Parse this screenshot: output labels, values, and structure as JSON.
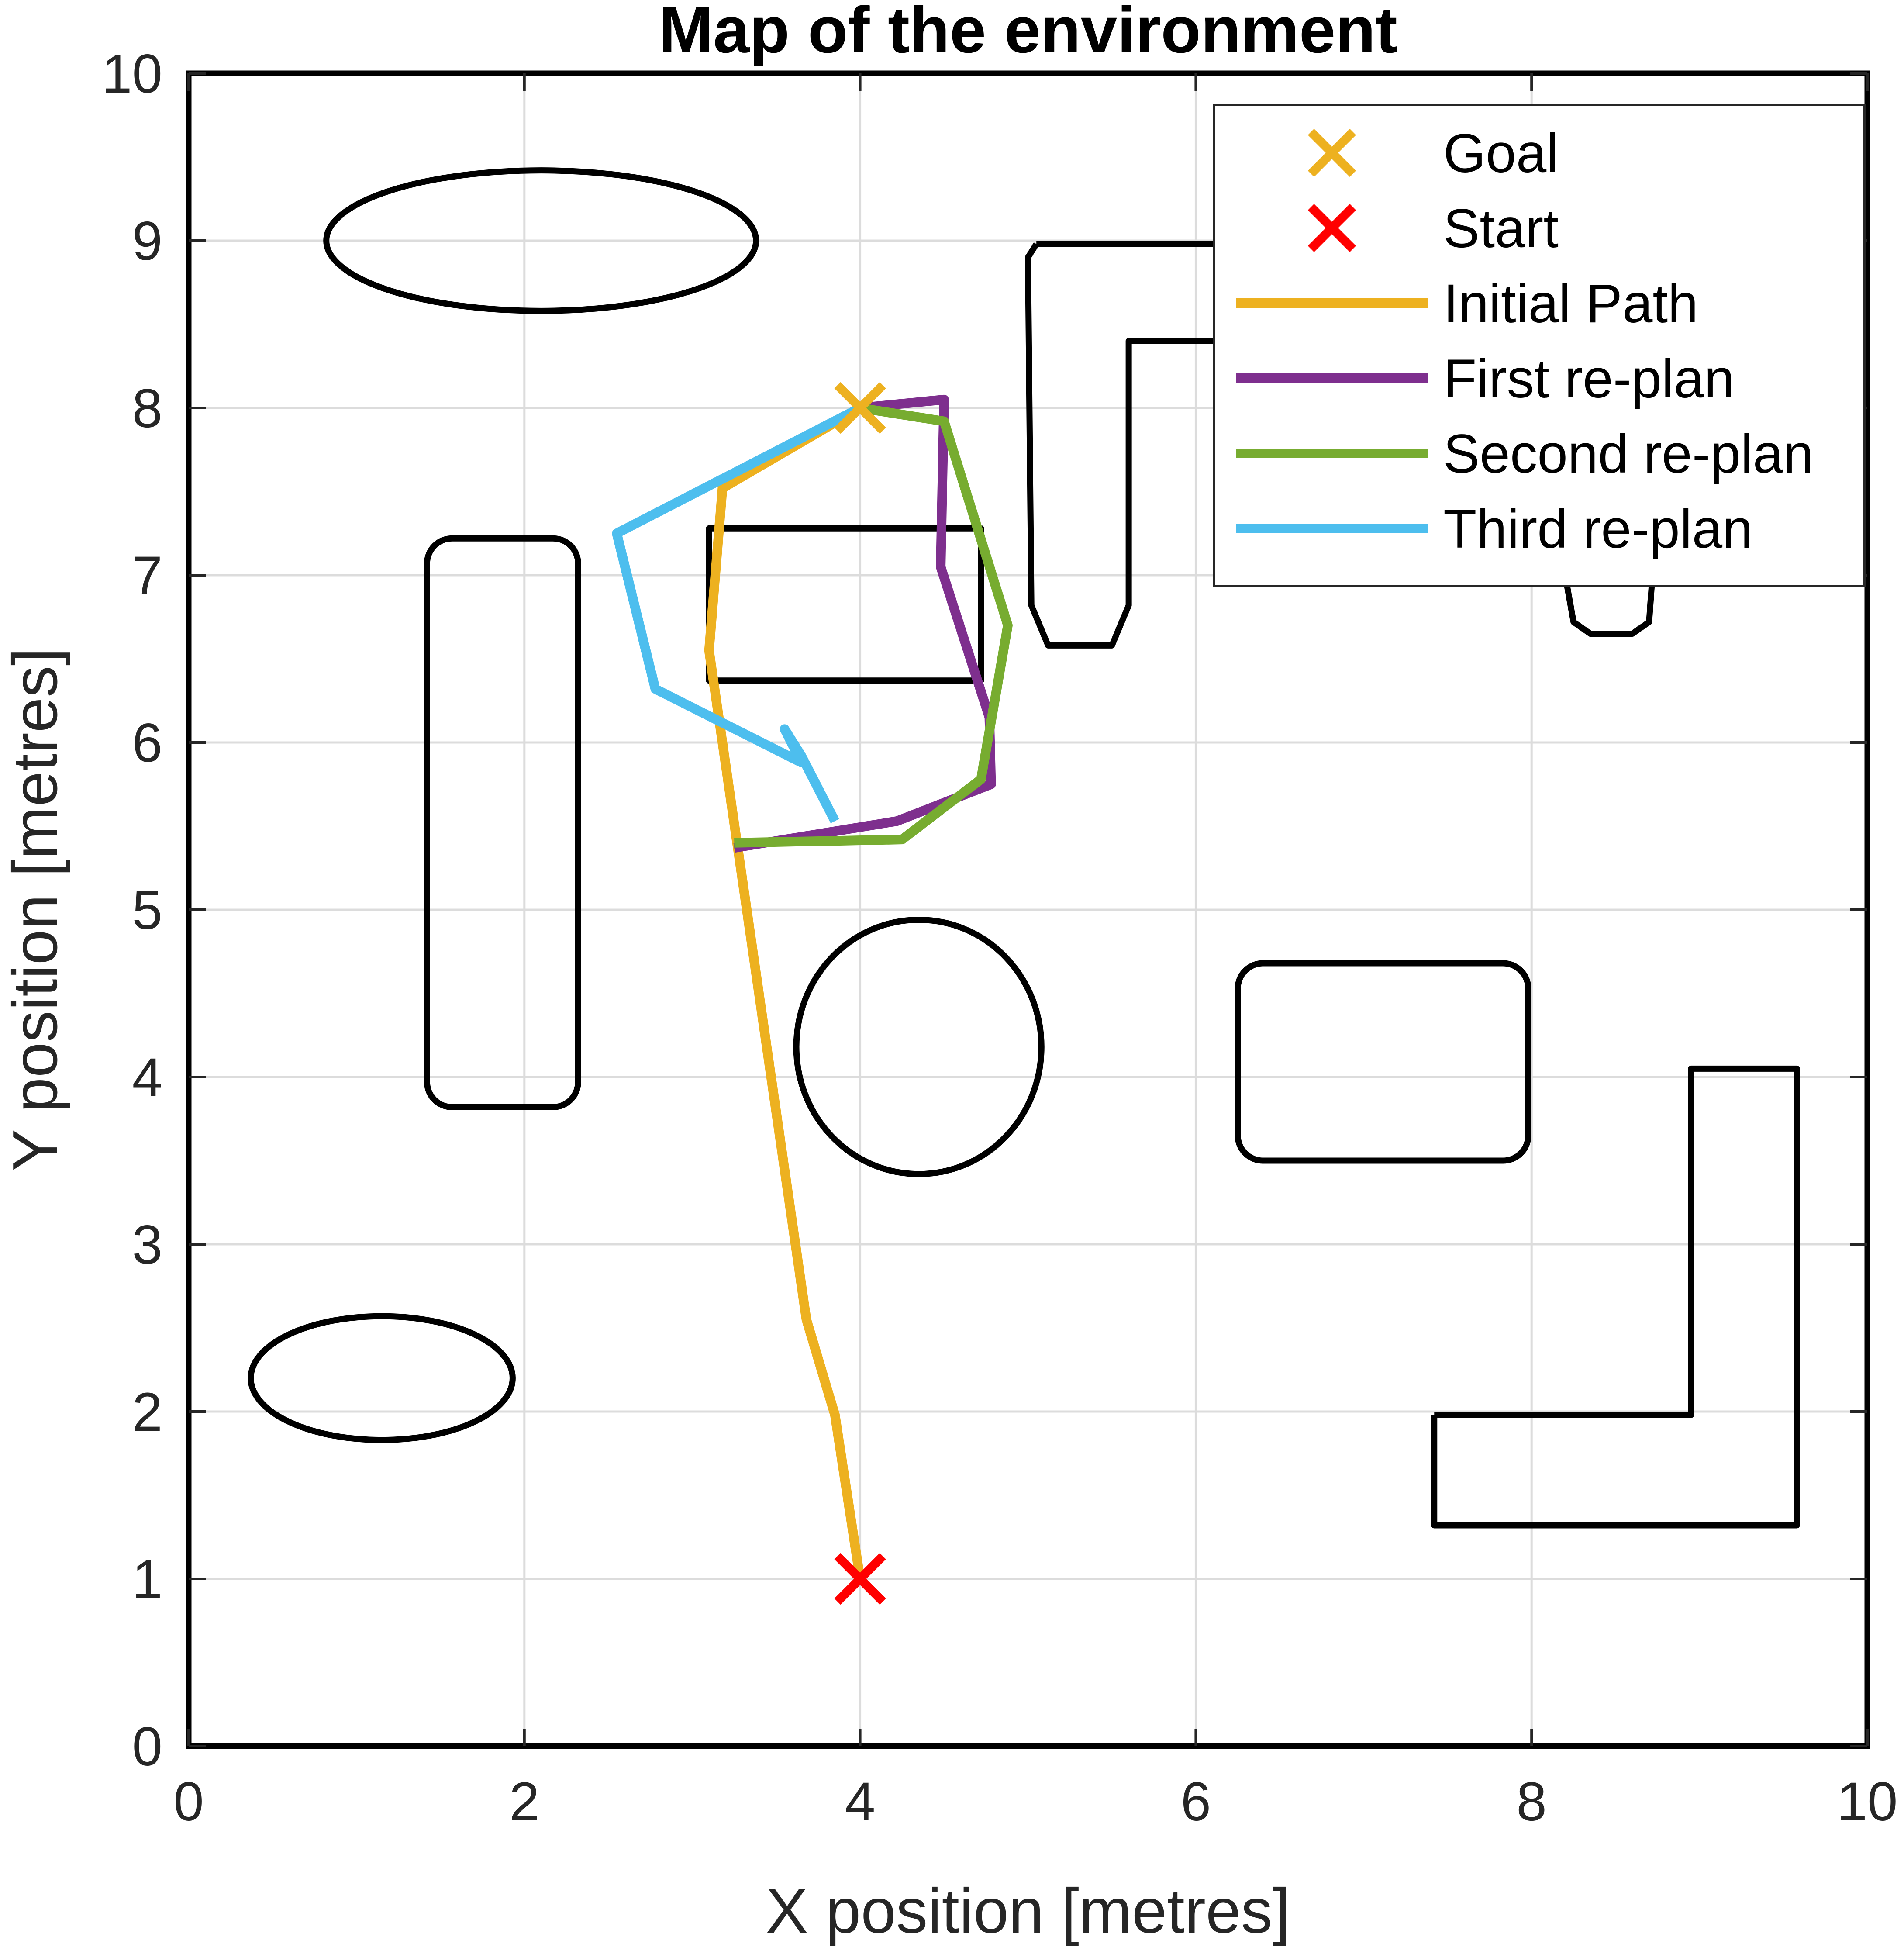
{
  "chart_data": {
    "type": "line",
    "title": "Map of the environment",
    "xlabel": "X position [metres]",
    "ylabel": "Y position [metres]",
    "xlim": [
      0,
      10
    ],
    "ylim": [
      0,
      10
    ],
    "xticks": [
      "0",
      "2",
      "4",
      "6",
      "8",
      "10"
    ],
    "yticks": [
      "0",
      "1",
      "2",
      "3",
      "4",
      "5",
      "6",
      "7",
      "8",
      "9",
      "10"
    ],
    "grid": true,
    "legend_position": "top-right",
    "markers": [
      {
        "name": "Goal",
        "x": 4.0,
        "y": 8.0,
        "color": "#EDB120",
        "symbol": "x"
      },
      {
        "name": "Start",
        "x": 4.0,
        "y": 1.0,
        "color": "#FF0000",
        "symbol": "x"
      }
    ],
    "series": [
      {
        "name": "Initial Path",
        "color": "#EDB120",
        "points": [
          [
            4.0,
            1.0
          ],
          [
            3.85,
            1.98
          ],
          [
            3.68,
            2.55
          ],
          [
            3.1,
            6.55
          ],
          [
            3.18,
            7.52
          ],
          [
            4.0,
            8.0
          ]
        ]
      },
      {
        "name": "First re-plan",
        "color": "#7E2F8E",
        "points": [
          [
            3.25,
            5.37
          ],
          [
            4.22,
            5.53
          ],
          [
            4.78,
            5.75
          ],
          [
            4.77,
            6.15
          ],
          [
            4.48,
            7.05
          ],
          [
            4.5,
            8.05
          ],
          [
            4.0,
            8.0
          ]
        ]
      },
      {
        "name": "Second re-plan",
        "color": "#77AC30",
        "points": [
          [
            3.25,
            5.4
          ],
          [
            4.25,
            5.42
          ],
          [
            4.72,
            5.78
          ],
          [
            4.88,
            6.7
          ],
          [
            4.5,
            7.92
          ],
          [
            4.0,
            8.0
          ]
        ]
      },
      {
        "name": "Third re-plan",
        "color": "#4DBEEE",
        "points": [
          [
            3.85,
            5.53
          ],
          [
            3.65,
            5.92
          ],
          [
            3.55,
            6.08
          ],
          [
            3.65,
            5.88
          ],
          [
            2.78,
            6.32
          ],
          [
            2.55,
            7.25
          ],
          [
            4.0,
            8.0
          ]
        ]
      }
    ],
    "obstacles": [
      {
        "shape": "ellipse",
        "cx": 2.1,
        "cy": 9.0,
        "rx": 1.28,
        "ry": 0.42
      },
      {
        "shape": "ellipse",
        "cx": 1.15,
        "cy": 2.2,
        "rx": 0.78,
        "ry": 0.37
      },
      {
        "shape": "ellipse",
        "cx": 4.35,
        "cy": 4.18,
        "rx": 0.73,
        "ry": 0.76
      },
      {
        "shape": "rect",
        "x": [
          1.42,
          2.32
        ],
        "y": [
          3.82,
          7.22
        ],
        "r": 0.15
      },
      {
        "shape": "rect",
        "x": [
          6.25,
          7.98
        ],
        "y": [
          3.5,
          4.68
        ],
        "r": 0.15
      },
      {
        "shape": "rect",
        "x": [
          3.1,
          4.72
        ],
        "y": [
          6.37,
          7.28
        ],
        "r": 0.0
      },
      {
        "shape": "polyline",
        "points": [
          [
            5.05,
            8.98
          ],
          [
            6.3,
            8.98
          ],
          [
            6.3,
            8.4
          ],
          [
            5.6,
            8.4
          ],
          [
            5.6,
            6.82
          ],
          [
            5.5,
            6.58
          ],
          [
            5.12,
            6.58
          ],
          [
            5.02,
            6.82
          ],
          [
            5.0,
            8.9
          ],
          [
            5.05,
            8.98
          ]
        ]
      },
      {
        "shape": "polyline",
        "points": [
          [
            8.2,
            7.0
          ],
          [
            8.25,
            6.72
          ],
          [
            8.35,
            6.65
          ],
          [
            8.6,
            6.65
          ],
          [
            8.7,
            6.72
          ],
          [
            8.72,
            7.0
          ]
        ]
      },
      {
        "shape": "polyline",
        "points": [
          [
            7.42,
            1.98
          ],
          [
            8.95,
            1.98
          ],
          [
            8.95,
            4.05
          ],
          [
            9.58,
            4.05
          ],
          [
            9.58,
            1.32
          ],
          [
            7.42,
            1.32
          ],
          [
            7.42,
            1.98
          ]
        ]
      }
    ]
  }
}
